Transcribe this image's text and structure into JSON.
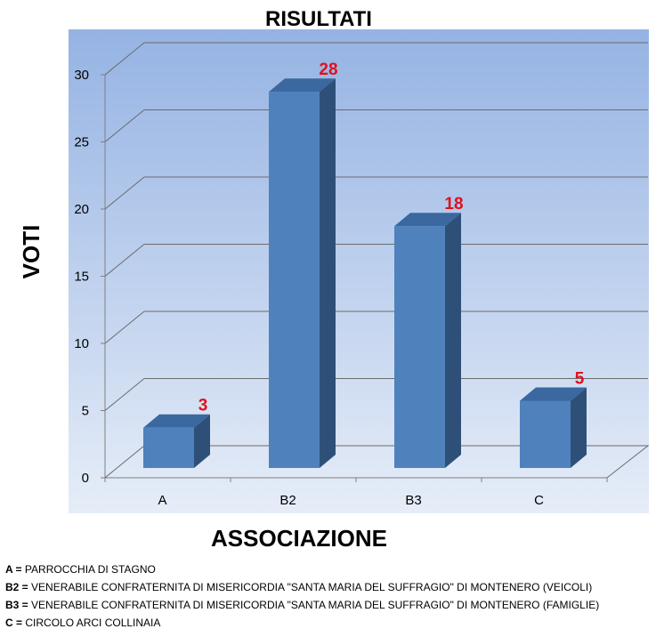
{
  "chart_data": {
    "type": "bar",
    "title": "RISULTATI",
    "xlabel": "ASSOCIAZIONE",
    "ylabel": "VOTI",
    "categories": [
      "A",
      "B2",
      "B3",
      "C"
    ],
    "values": [
      3,
      28,
      18,
      5
    ],
    "ylim": [
      0,
      30
    ],
    "yticks": [
      0,
      5,
      10,
      15,
      20,
      25,
      30
    ],
    "grid": true,
    "legend": "none"
  },
  "colors": {
    "bar_front": "#4f81bd",
    "bar_side": "#2e5078",
    "bar_top": "#3a689f",
    "data_label": "#e3101a"
  },
  "key_legend": [
    {
      "key": "A =",
      "text": "PARROCCHIA DI STAGNO"
    },
    {
      "key": "B2 =",
      "text": "VENERABILE CONFRATERNITA DI MISERICORDIA \"SANTA MARIA DEL SUFFRAGIO\" DI MONTENERO (VEICOLI)"
    },
    {
      "key": "B3 =",
      "text": "VENERABILE CONFRATERNITA DI MISERICORDIA \"SANTA MARIA DEL SUFFRAGIO\" DI MONTENERO (FAMIGLIE)"
    },
    {
      "key": "C =",
      "text": "CIRCOLO ARCI COLLINAIA"
    }
  ]
}
